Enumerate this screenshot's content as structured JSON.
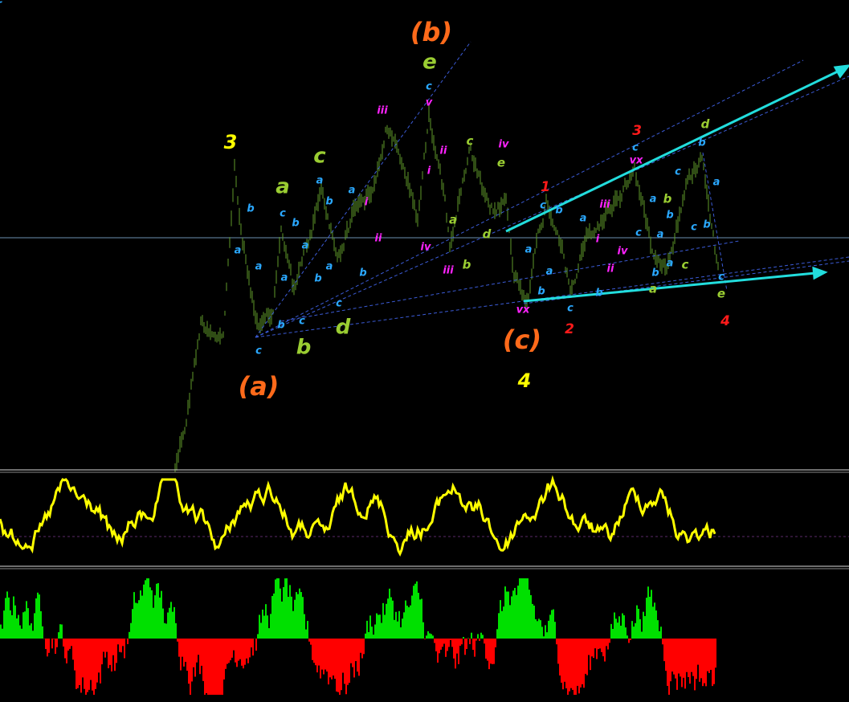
{
  "wave_labels": [
    "(b)",
    "(a)",
    "(c)",
    "3",
    "4",
    "e",
    "a",
    "c",
    "b",
    "d",
    "c",
    "e",
    "a",
    "b",
    "d",
    "b",
    "c",
    "a",
    "d",
    "e",
    "1",
    "3",
    "2",
    "4",
    "iii",
    "v",
    "ii",
    "iv",
    "i",
    "i",
    "ii",
    "iv",
    "iii",
    "vx",
    "iii",
    "i",
    "iv",
    "ii",
    "vx",
    "c",
    "b",
    "a",
    "a",
    "c",
    "b",
    "a",
    "a",
    "b",
    "c",
    "c",
    "a",
    "b",
    "a",
    "a",
    "b",
    "c",
    "b",
    "c",
    "b",
    "a",
    "a",
    "b",
    "c",
    "a",
    "b",
    "c",
    "c",
    "a",
    "b",
    "c",
    "a",
    "a",
    "b",
    "c",
    "b",
    "a",
    "b",
    "c",
    "c"
  ]
}
